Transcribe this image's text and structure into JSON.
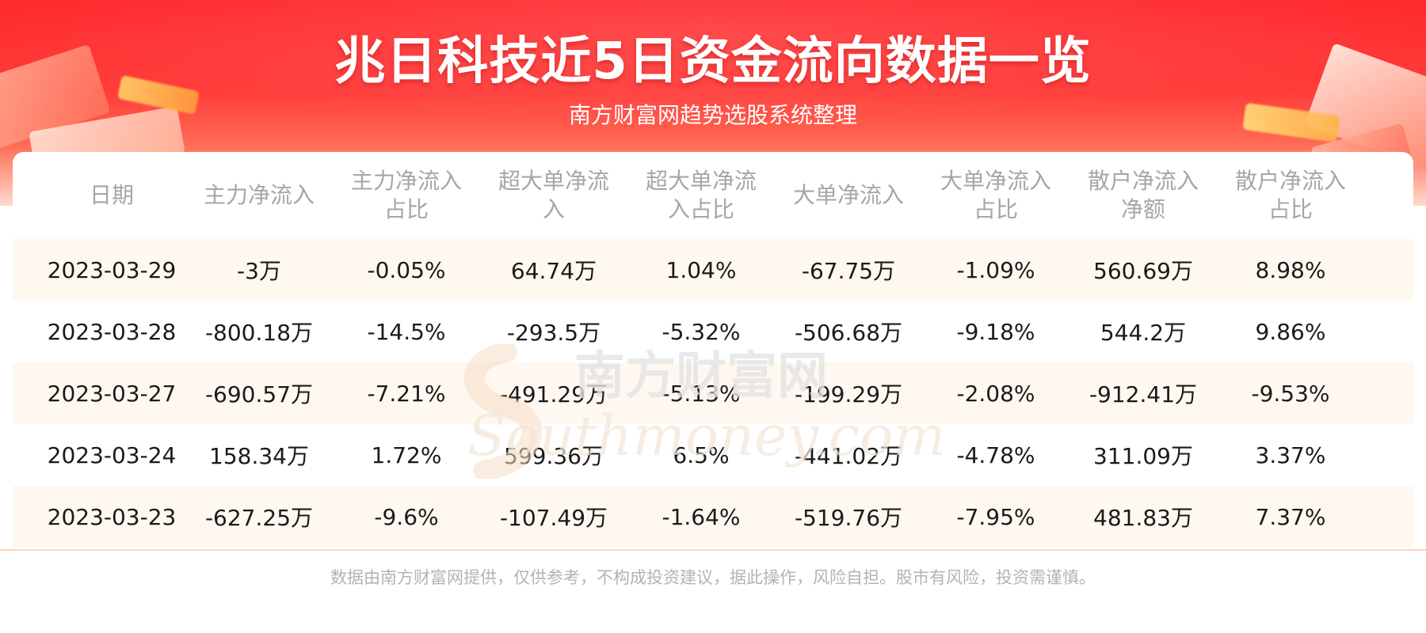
{
  "header": {
    "title": "兆日科技近5日资金流向数据一览",
    "subtitle": "南方财富网趋势选股系统整理"
  },
  "table": {
    "columns": [
      "日期",
      "主力净流入",
      "主力净流入占比",
      "超大单净流入",
      "超大单净流入占比",
      "大单净流入",
      "大单净流入占比",
      "散户净流入净额",
      "散户净流入占比"
    ],
    "rows": [
      [
        "2023-03-29",
        "-3万",
        "-0.05%",
        "64.74万",
        "1.04%",
        "-67.75万",
        "-1.09%",
        "560.69万",
        "8.98%"
      ],
      [
        "2023-03-28",
        "-800.18万",
        "-14.5%",
        "-293.5万",
        "-5.32%",
        "-506.68万",
        "-9.18%",
        "544.2万",
        "9.86%"
      ],
      [
        "2023-03-27",
        "-690.57万",
        "-7.21%",
        "-491.29万",
        "-5.13%",
        "-199.29万",
        "-2.08%",
        "-912.41万",
        "-9.53%"
      ],
      [
        "2023-03-24",
        "158.34万",
        "1.72%",
        "599.36万",
        "6.5%",
        "-441.02万",
        "-4.78%",
        "311.09万",
        "3.37%"
      ],
      [
        "2023-03-23",
        "-627.25万",
        "-9.6%",
        "-107.49万",
        "-1.64%",
        "-519.76万",
        "-7.95%",
        "481.83万",
        "7.37%"
      ]
    ]
  },
  "watermark": {
    "text_cn": "南方财富网",
    "text_en": "Southmoney.com"
  },
  "footer": {
    "disclaimer": "数据由南方财富网提供，仅供参考，不构成投资建议，据此操作，风险自担。股市有风险，投资需谨慎。"
  },
  "colors": {
    "header_red": "#ff2a2e",
    "row_alt": "#fff8f0",
    "header_text": "#a6a6a6",
    "cell_text": "#1a1a1a"
  }
}
